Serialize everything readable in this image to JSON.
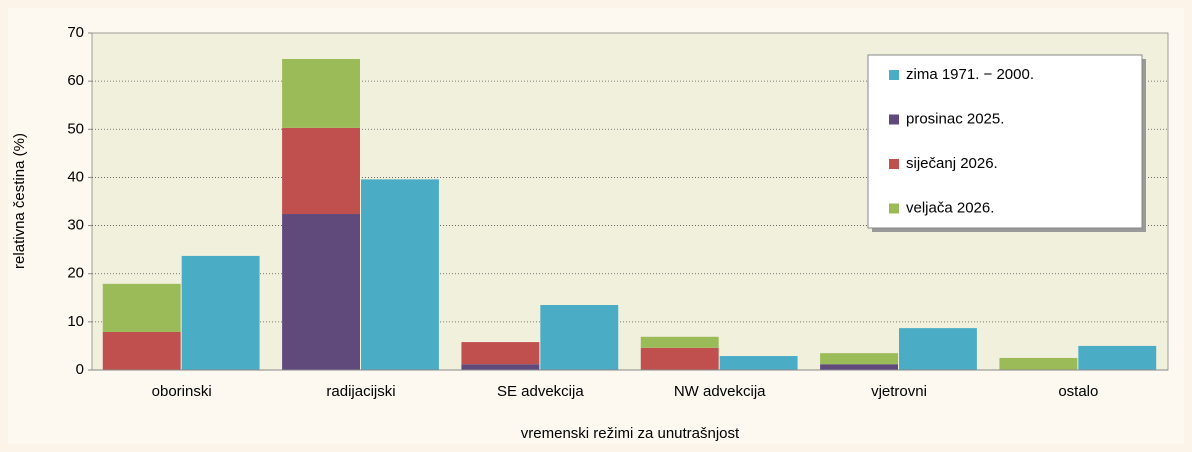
{
  "chart_data": {
    "type": "bar",
    "stacked": true,
    "x_label": "vremenski režimi za unutrašnjost",
    "y_label": "relativna čestina (%)",
    "categories": [
      "oborinski",
      "radijacijski",
      "SE advekcija",
      "NW advekcija",
      "vjetrovni",
      "ostalo"
    ],
    "series": [
      {
        "name": "zima 1971. − 2000.",
        "color": "#4bacc6",
        "stack": "b",
        "values": [
          23.7,
          39.6,
          13.5,
          2.9,
          8.7,
          5.0
        ]
      },
      {
        "name": "prosinac 2025.",
        "color": "#604a7b",
        "stack": "a",
        "values": [
          0,
          32.4,
          1.2,
          0,
          1.2,
          0
        ]
      },
      {
        "name": "siječanj 2026.",
        "color": "#c0504d",
        "stack": "a",
        "values": [
          7.9,
          17.9,
          4.6,
          4.6,
          0,
          0
        ]
      },
      {
        "name": "veljača 2026.",
        "color": "#9bbb59",
        "stack": "a",
        "values": [
          10.0,
          14.3,
          0,
          2.3,
          2.3,
          2.5
        ]
      }
    ],
    "ylim": [
      0,
      70
    ],
    "yticks": [
      0,
      10,
      20,
      30,
      40,
      50,
      60,
      70
    ],
    "grid": true,
    "legend": "upper right"
  }
}
